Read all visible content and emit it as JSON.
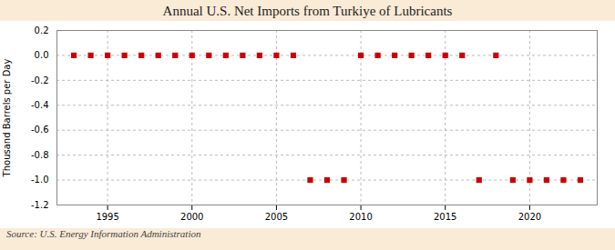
{
  "chart_data": {
    "type": "scatter",
    "title": "Annual U.S. Net Imports from Turkiye of Lubricants",
    "ylabel": "Thousand Barrels per Day",
    "caption": "Source: U.S. Energy Information Administration",
    "x": [
      1993,
      1994,
      1995,
      1996,
      1997,
      1998,
      1999,
      2000,
      2001,
      2002,
      2003,
      2004,
      2005,
      2006,
      2007,
      2008,
      2009,
      2010,
      2011,
      2012,
      2013,
      2014,
      2015,
      2016,
      2017,
      2018,
      2019,
      2020,
      2021,
      2022,
      2023
    ],
    "values": [
      0,
      0,
      0,
      0,
      0,
      0,
      0,
      0,
      0,
      0,
      0,
      0,
      0,
      0,
      -1,
      -1,
      -1,
      0,
      0,
      0,
      0,
      0,
      0,
      0,
      -1,
      0,
      -1,
      -1,
      -1,
      -1,
      -1
    ],
    "color": "#cc0000",
    "marker": "square",
    "xlim": [
      1992,
      2024
    ],
    "xticks": [
      1995,
      2000,
      2005,
      2010,
      2015,
      2020
    ],
    "ylim": [
      -1.2,
      0.2
    ],
    "yticks": [
      0.2,
      {
        "value": 0,
        "label": "0.0"
      },
      -0.2,
      -0.4,
      -0.6,
      -0.8,
      {
        "value": -1,
        "label": "-1.0"
      },
      -1.2
    ],
    "grid": true
  }
}
